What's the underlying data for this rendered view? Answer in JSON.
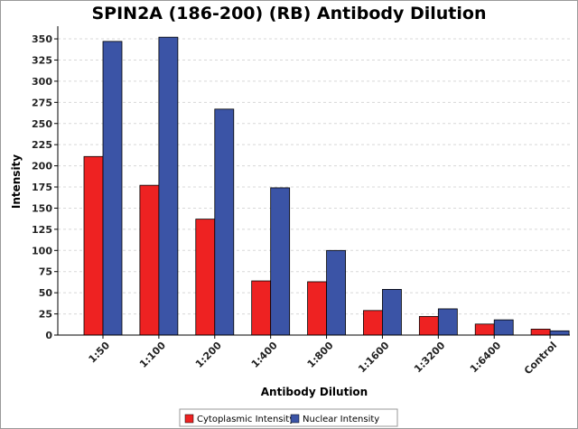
{
  "chart_data": {
    "type": "bar",
    "title": "SPIN2A (186-200) (RB) Antibody Dilution",
    "xlabel": "Antibody Dilution",
    "ylabel": "Intensity",
    "categories": [
      "1:50",
      "1:100",
      "1:200",
      "1:400",
      "1:800",
      "1:1600",
      "1:3200",
      "1:6400",
      "Control"
    ],
    "series": [
      {
        "name": "Cytoplasmic Intensity",
        "color": "#ee2222",
        "values": [
          211,
          177,
          137,
          64,
          63,
          29,
          22,
          13,
          7
        ]
      },
      {
        "name": "Nuclear Intensity",
        "color": "#3b54a6",
        "values": [
          347,
          352,
          267,
          174,
          100,
          54,
          31,
          18,
          5
        ]
      }
    ],
    "ylim": [
      0,
      365
    ],
    "yticks": [
      0,
      25,
      50,
      75,
      100,
      125,
      150,
      175,
      200,
      225,
      250,
      275,
      300,
      325,
      350
    ],
    "grid": true,
    "legend_position": "bottom-center"
  }
}
